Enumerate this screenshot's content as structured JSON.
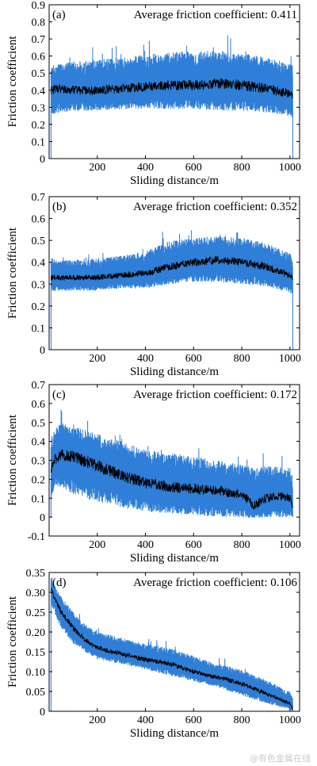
{
  "chart_data": [
    {
      "type": "line",
      "panel_label": "(a)",
      "annotation": "Average friction coefficient: 0.411",
      "xlabel": "Sliding distance/m",
      "ylabel": "Friction coefficient",
      "xlim": [
        0,
        1040
      ],
      "ylim": [
        0,
        0.9
      ],
      "xticks": [
        "200",
        "400",
        "600",
        "800",
        "1000"
      ],
      "yticks": [
        "0",
        "0.1",
        "0.2",
        "0.3",
        "0.4",
        "0.5",
        "0.6",
        "0.7",
        "0.8",
        "0.9"
      ],
      "series": [
        {
          "values_x": [
            8,
            40,
            100,
            200,
            300,
            400,
            500,
            600,
            700,
            800,
            900,
            1000,
            1012
          ],
          "mean": [
            0.4,
            0.41,
            0.4,
            0.4,
            0.41,
            0.42,
            0.43,
            0.43,
            0.44,
            0.43,
            0.41,
            0.38,
            0.38
          ],
          "low": [
            0.25,
            0.27,
            0.28,
            0.28,
            0.29,
            0.29,
            0.29,
            0.29,
            0.28,
            0.28,
            0.27,
            0.25,
            0.22
          ],
          "high": [
            0.55,
            0.55,
            0.57,
            0.58,
            0.59,
            0.61,
            0.62,
            0.63,
            0.63,
            0.62,
            0.59,
            0.56,
            0.55
          ],
          "color_band": "#2f7fd8",
          "color_line": "#000000"
        }
      ]
    },
    {
      "type": "line",
      "panel_label": "(b)",
      "annotation": "Average friction coefficient: 0.352",
      "xlabel": "Sliding distance/m",
      "ylabel": "Friction coefficient",
      "xlim": [
        0,
        1040
      ],
      "ylim": [
        0,
        0.7
      ],
      "xticks": [
        "200",
        "400",
        "600",
        "800",
        "1000"
      ],
      "yticks": [
        "0",
        "0.1",
        "0.2",
        "0.3",
        "0.4",
        "0.5",
        "0.6",
        "0.7"
      ],
      "series": [
        {
          "values_x": [
            8,
            40,
            100,
            200,
            300,
            400,
            500,
            600,
            700,
            800,
            900,
            1000,
            1012
          ],
          "mean": [
            0.33,
            0.33,
            0.33,
            0.33,
            0.34,
            0.35,
            0.38,
            0.4,
            0.41,
            0.4,
            0.38,
            0.34,
            0.33
          ],
          "low": [
            0.26,
            0.27,
            0.27,
            0.27,
            0.28,
            0.28,
            0.3,
            0.31,
            0.31,
            0.3,
            0.29,
            0.26,
            0.25
          ],
          "high": [
            0.42,
            0.41,
            0.41,
            0.42,
            0.43,
            0.45,
            0.5,
            0.51,
            0.52,
            0.51,
            0.49,
            0.44,
            0.42
          ],
          "color_band": "#2f7fd8",
          "color_line": "#000000"
        }
      ]
    },
    {
      "type": "line",
      "panel_label": "(c)",
      "annotation": "Average friction coefficient: 0.172",
      "xlabel": "Sliding distance/m",
      "ylabel": "Friction coefficient",
      "xlim": [
        0,
        1040
      ],
      "ylim": [
        -0.1,
        0.7
      ],
      "xticks": [
        "200",
        "400",
        "600",
        "800",
        "1000"
      ],
      "yticks": [
        "-0.1",
        "0",
        "0.1",
        "0.2",
        "0.3",
        "0.4",
        "0.5",
        "0.6",
        "0.7"
      ],
      "series": [
        {
          "values_x": [
            8,
            20,
            50,
            100,
            200,
            300,
            400,
            500,
            600,
            700,
            800,
            850,
            900,
            950,
            1000,
            1012
          ],
          "mean": [
            0.25,
            0.3,
            0.33,
            0.32,
            0.27,
            0.22,
            0.18,
            0.16,
            0.15,
            0.14,
            0.12,
            0.06,
            0.1,
            0.11,
            0.1,
            0.05
          ],
          "low": [
            0.1,
            0.15,
            0.16,
            0.12,
            0.08,
            0.05,
            0.03,
            0.02,
            0.01,
            0.0,
            0.0,
            -0.01,
            0.0,
            0.0,
            0.0,
            0.0
          ],
          "high": [
            0.4,
            0.46,
            0.5,
            0.48,
            0.44,
            0.4,
            0.36,
            0.34,
            0.32,
            0.3,
            0.28,
            0.26,
            0.27,
            0.27,
            0.26,
            0.22
          ],
          "color_band": "#2f7fd8",
          "color_line": "#000000"
        }
      ]
    },
    {
      "type": "line",
      "panel_label": "(d)",
      "annotation": "Average friction coefficient: 0.106",
      "xlabel": "Sliding distance/m",
      "ylabel": "Friction coefficient",
      "xlim": [
        0,
        1040
      ],
      "ylim": [
        0,
        0.35
      ],
      "xticks": [
        "200",
        "400",
        "600",
        "800",
        "1000"
      ],
      "yticks": [
        "0",
        "0.05",
        "0.10",
        "0.15",
        "0.20",
        "0.25",
        "0.30",
        "0.35"
      ],
      "series": [
        {
          "values_x": [
            8,
            20,
            50,
            100,
            150,
            200,
            300,
            400,
            500,
            600,
            700,
            800,
            900,
            1000,
            1012
          ],
          "mean": [
            0.31,
            0.29,
            0.25,
            0.21,
            0.18,
            0.16,
            0.145,
            0.13,
            0.12,
            0.1,
            0.085,
            0.07,
            0.045,
            0.02,
            0.005
          ],
          "low": [
            0.27,
            0.25,
            0.21,
            0.17,
            0.15,
            0.13,
            0.12,
            0.105,
            0.09,
            0.075,
            0.06,
            0.04,
            0.02,
            0.005,
            0.0
          ],
          "high": [
            0.33,
            0.32,
            0.29,
            0.25,
            0.22,
            0.2,
            0.185,
            0.17,
            0.16,
            0.14,
            0.12,
            0.105,
            0.08,
            0.05,
            0.035
          ],
          "color_band": "#2f7fd8",
          "color_line": "#000000"
        }
      ]
    }
  ],
  "watermark": "@有色金属在线"
}
